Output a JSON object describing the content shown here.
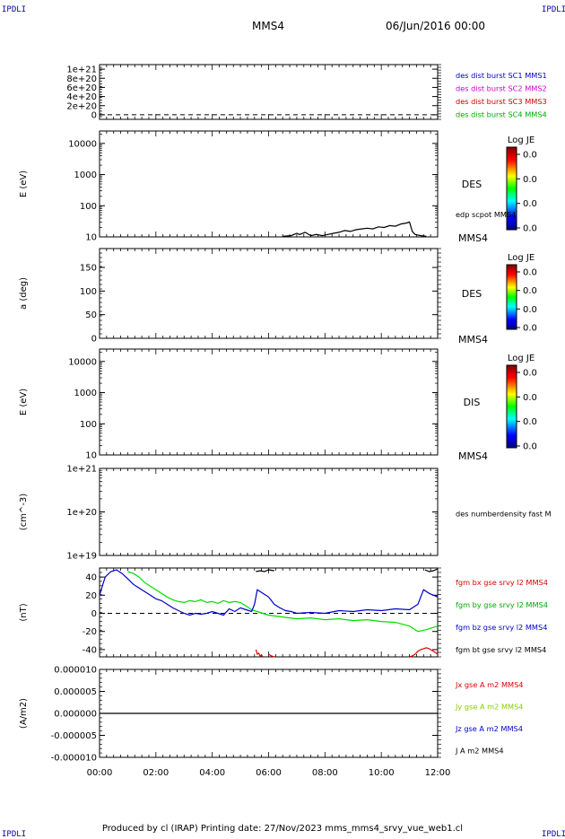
{
  "corner_label": "IPDLI",
  "header": {
    "spacecraft": "MMS4",
    "date": "06/Jun/2016 00:00"
  },
  "footer": {
    "text": "Produced by cl (IRAP)   Printing date: 27/Nov/2023   mms_mms4_srvy_vue_web1.cl"
  },
  "time_axis": {
    "ticks": [
      "00:00",
      "02:00",
      "04:00",
      "06:00",
      "08:00",
      "10:00",
      "12:00"
    ],
    "range_hours": [
      0,
      12
    ]
  },
  "colors": {
    "mms1": "#0000cc",
    "mms2": "#cc00cc",
    "mms3": "#cc0000",
    "mms4": "#00aa00",
    "bx": "#dd0000",
    "by": "#00dd00",
    "bz": "#0000cc",
    "bt": "#000000"
  },
  "chart_data": [
    {
      "id": "dist_burst",
      "type": "line",
      "ylabel": "",
      "yticks": [
        "1e+21",
        "8e+20",
        "6e+20",
        "4e+20",
        "2e+20",
        "0"
      ],
      "ytick_values": [
        1e+21,
        8e+20,
        6e+20,
        4e+20,
        2e+20,
        0
      ],
      "ylim": [
        -1e+20,
        1.1e+21
      ],
      "zero_line": "dashed",
      "legend": [
        "des dist burst SC1 MMS1",
        "des dist burst SC2 MMS2",
        "des dist burst SC3 MMS3",
        "des dist burst SC4 MMS4"
      ],
      "series": []
    },
    {
      "id": "des_energy",
      "type": "line",
      "scale": "log",
      "ylabel": "E (eV)",
      "yticks": [
        "10000",
        "1000",
        "100",
        "10"
      ],
      "ytick_values": [
        10000,
        1000,
        100,
        10
      ],
      "ylim": [
        10,
        25000
      ],
      "side_label": "DES",
      "bottom_label": "MMS4",
      "legend": [
        "edp scpot MMS4"
      ],
      "colorbar": {
        "title": "Log JE",
        "ticks": [
          "0.0",
          "0.0",
          "0.0",
          "0.0"
        ]
      },
      "series": [
        {
          "name": "edp scpot MMS4",
          "x": [
            6.5,
            6.8,
            7.0,
            7.1,
            7.3,
            7.5,
            7.7,
            7.9,
            8.1,
            8.3,
            8.5,
            8.7,
            8.9,
            9.1,
            9.3,
            9.5,
            9.7,
            9.9,
            10.1,
            10.3,
            10.5,
            10.7,
            10.9,
            11.0,
            11.1,
            11.2,
            11.4,
            11.6
          ],
          "y": [
            10.5,
            11,
            13,
            12,
            14,
            11,
            12,
            11,
            12,
            13,
            14,
            16,
            15,
            17,
            18,
            19,
            18,
            21,
            20,
            23,
            22,
            26,
            28,
            30,
            15,
            12,
            11,
            10.5
          ]
        }
      ]
    },
    {
      "id": "des_pitch",
      "type": "heatmap",
      "ylabel": "a (deg)",
      "yticks": [
        "150",
        "100",
        "50",
        "0"
      ],
      "ytick_values": [
        150,
        100,
        50,
        0
      ],
      "ylim": [
        0,
        190
      ],
      "side_label": "DES",
      "bottom_label": "MMS4",
      "colorbar": {
        "title": "Log JE",
        "ticks": [
          "0.0",
          "0.0",
          "0.0",
          "0.0"
        ]
      }
    },
    {
      "id": "dis_energy",
      "type": "heatmap",
      "scale": "log",
      "ylabel": "E (eV)",
      "yticks": [
        "10000",
        "1000",
        "100",
        "10"
      ],
      "ytick_values": [
        10000,
        1000,
        100,
        10
      ],
      "ylim": [
        10,
        25000
      ],
      "side_label": "DIS",
      "bottom_label": "MMS4",
      "colorbar": {
        "title": "Log JE",
        "ticks": [
          "0.0",
          "0.0",
          "0.0",
          "0.0"
        ]
      }
    },
    {
      "id": "density",
      "type": "line",
      "scale": "log",
      "ylabel": "(cm^-3)",
      "yticks": [
        "1e+21",
        "1e+20",
        "1e+19"
      ],
      "ytick_values": [
        1e+21,
        1e+20,
        1e+19
      ],
      "ylim": [
        1e+19,
        1e+21
      ],
      "legend": [
        "des numberdensity fast M"
      ],
      "series": []
    },
    {
      "id": "fgm",
      "type": "line",
      "ylabel": "(nT)",
      "yticks": [
        "40",
        "20",
        "0",
        "-20",
        "-40"
      ],
      "ytick_values": [
        40,
        20,
        0,
        -20,
        -40
      ],
      "ylim": [
        -48,
        50
      ],
      "zero_line": "dashed",
      "legend": [
        "fgm bx gse srvy l2 MMS4",
        "fgm by gse srvy l2 MMS4",
        "fgm bz gse srvy l2 MMS4",
        "fgm bt gse srvy l2 MMS4"
      ],
      "series": [
        {
          "name": "fgm bx gse srvy l2 MMS4",
          "color_key": "bx",
          "segments": [
            {
              "x": [
                5.55,
                5.6,
                5.65,
                5.7,
                5.75,
                5.8
              ],
              "y": [
                -40,
                -45,
                -44,
                -47,
                -46,
                -48
              ]
            },
            {
              "x": [
                6.0,
                6.1,
                6.2
              ],
              "y": [
                -45,
                -47,
                -48
              ]
            },
            {
              "x": [
                11.0,
                11.1,
                11.2,
                11.3,
                11.4,
                11.5,
                11.6,
                11.7,
                11.8,
                11.9,
                12.0
              ],
              "y": [
                -48,
                -47,
                -45,
                -42,
                -40,
                -39,
                -38,
                -39,
                -41,
                -43,
                -45
              ]
            }
          ]
        },
        {
          "name": "fgm by gse srvy l2 MMS4",
          "color_key": "by",
          "segments": [
            {
              "x": [
                1.0,
                1.2,
                1.4,
                1.6,
                1.8,
                2.0,
                2.2,
                2.4,
                2.6,
                2.8,
                3.0,
                3.2,
                3.4,
                3.6,
                3.8,
                4.0,
                4.2,
                4.4,
                4.6,
                4.8,
                5.0,
                5.2,
                5.4,
                5.6,
                5.8,
                6.0,
                6.5,
                7.0,
                7.5,
                8.0,
                8.5,
                9.0,
                9.5,
                10.0,
                10.5,
                11.0,
                11.3,
                11.6,
                12.0
              ],
              "y": [
                46,
                44,
                40,
                34,
                30,
                26,
                22,
                18,
                15,
                13,
                12,
                14,
                13,
                15,
                12,
                13,
                11,
                14,
                12,
                13,
                12,
                8,
                4,
                2,
                0,
                -2,
                -4,
                -6,
                -5,
                -7,
                -6,
                -8,
                -7,
                -9,
                -10,
                -14,
                -20,
                -18,
                -14
              ]
            }
          ]
        },
        {
          "name": "fgm bz gse srvy l2 MMS4",
          "color_key": "bz",
          "segments": [
            {
              "x": [
                0.0,
                0.1,
                0.2,
                0.4,
                0.6,
                0.8,
                1.0,
                1.2,
                1.4,
                1.6,
                1.8,
                2.0,
                2.2,
                2.4,
                2.6,
                2.8,
                3.0,
                3.2,
                3.4,
                3.6,
                3.8,
                4.0,
                4.2,
                4.4,
                4.6,
                4.8,
                5.0,
                5.2,
                5.4,
                5.5,
                5.6,
                5.8,
                6.0,
                6.2,
                6.4,
                6.6,
                6.8,
                7.0,
                7.5,
                8.0,
                8.5,
                9.0,
                9.5,
                10.0,
                10.5,
                11.0,
                11.3,
                11.5,
                11.7,
                12.0
              ],
              "y": [
                20,
                30,
                40,
                46,
                48,
                44,
                38,
                32,
                28,
                24,
                20,
                16,
                14,
                10,
                6,
                3,
                0,
                -2,
                0,
                -1,
                0,
                2,
                0,
                -2,
                5,
                2,
                6,
                4,
                2,
                10,
                26,
                22,
                18,
                10,
                6,
                3,
                2,
                0,
                1,
                0,
                3,
                2,
                4,
                3,
                5,
                4,
                10,
                26,
                22,
                18
              ]
            }
          ]
        },
        {
          "name": "fgm bt gse srvy l2 MMS4",
          "color_key": "bt",
          "segments": [
            {
              "x": [
                5.55,
                5.7,
                5.85,
                6.0,
                6.2
              ],
              "y": [
                46,
                47,
                46,
                48,
                47
              ]
            },
            {
              "x": [
                11.55,
                11.7,
                11.85,
                12.0
              ],
              "y": [
                48,
                46,
                47,
                49
              ]
            }
          ]
        }
      ]
    },
    {
      "id": "current",
      "type": "line",
      "ylabel": "(A/m2)",
      "yticks": [
        "0.000010",
        "0.000005",
        "0.000000",
        "-0.000005",
        "-0.000010"
      ],
      "ytick_values": [
        1e-05,
        5e-06,
        0,
        -5e-06,
        -1e-05
      ],
      "ylim": [
        -1e-05,
        1e-05
      ],
      "legend": [
        "Jx gse A m2 MMS4",
        "Jy gse A m2 MMS4",
        "Jz gse A m2 MMS4",
        "J A m2 MMS4"
      ],
      "series": [
        {
          "name": "J A m2 MMS4",
          "x": [
            0,
            1,
            2,
            3,
            4,
            5,
            6,
            7,
            8,
            9,
            10,
            11,
            12
          ],
          "y": [
            0,
            0,
            0,
            0,
            0,
            0,
            0,
            0,
            0,
            0,
            0,
            0,
            0
          ]
        }
      ]
    }
  ]
}
